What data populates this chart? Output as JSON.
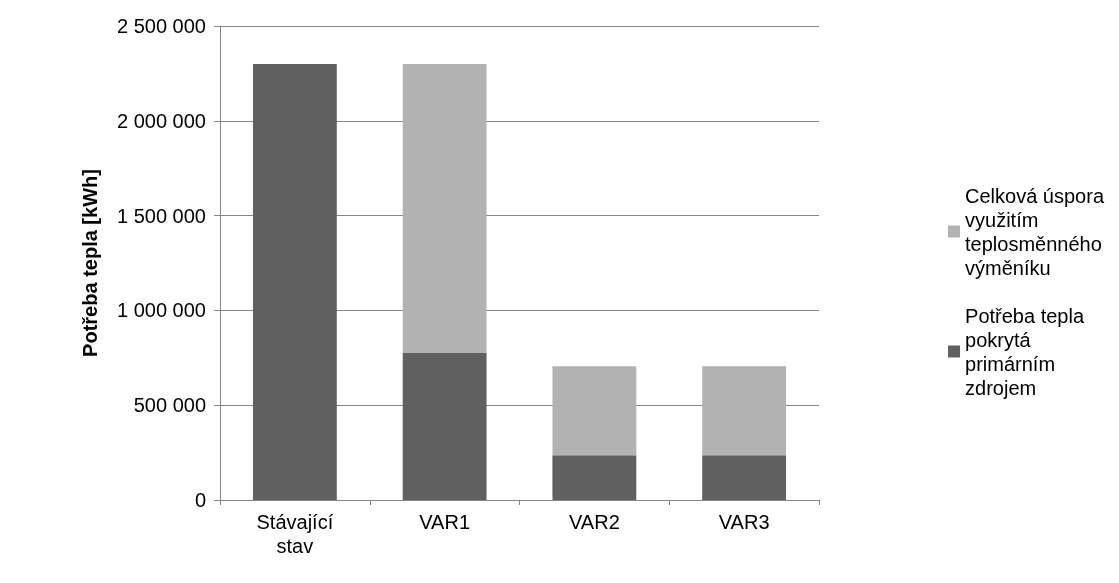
{
  "chart_data": {
    "type": "bar",
    "stacked": true,
    "ylabel": "Potřeba tepla [kWh]",
    "categories": [
      "Stávající stav",
      "VAR1",
      "VAR2",
      "VAR3"
    ],
    "series": [
      {
        "name": "Potřeba tepla pokrytá primárním zdrojem",
        "color": "#606060",
        "values": [
          2300000,
          775000,
          236000,
          236000
        ]
      },
      {
        "name": "Celková úspora využitím teplosměnného výměníku",
        "color": "#b2b2b2",
        "values": [
          0,
          1525000,
          470000,
          470000
        ]
      }
    ],
    "ylim": [
      0,
      2500000
    ],
    "yticks": [
      {
        "value": 0,
        "label": "0"
      },
      {
        "value": 500000,
        "label": "500 000"
      },
      {
        "value": 1000000,
        "label": "1 000 000"
      },
      {
        "value": 1500000,
        "label": "1 500 000"
      },
      {
        "value": 2000000,
        "label": "2 000 000"
      },
      {
        "value": 2500000,
        "label": "2 500 000"
      }
    ],
    "grid": "y",
    "legend": "right"
  }
}
